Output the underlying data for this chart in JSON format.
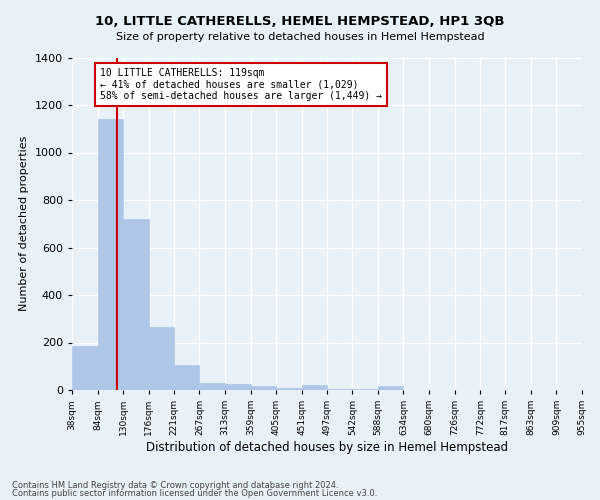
{
  "title": "10, LITTLE CATHERELLS, HEMEL HEMPSTEAD, HP1 3QB",
  "subtitle": "Size of property relative to detached houses in Hemel Hempstead",
  "xlabel": "Distribution of detached houses by size in Hemel Hempstead",
  "ylabel": "Number of detached properties",
  "footnote1": "Contains HM Land Registry data © Crown copyright and database right 2024.",
  "footnote2": "Contains public sector information licensed under the Open Government Licence v3.0.",
  "bar_edges": [
    38,
    84,
    130,
    176,
    221,
    267,
    313,
    359,
    405,
    451,
    497,
    542,
    588,
    634,
    680,
    726,
    772,
    817,
    863,
    909,
    955
  ],
  "bar_heights": [
    185,
    1140,
    720,
    265,
    105,
    30,
    25,
    15,
    8,
    20,
    6,
    6,
    15,
    2,
    2,
    2,
    2,
    2,
    2,
    2
  ],
  "bar_color": "#aec6e8",
  "bar_edge_color": "#aec6e8",
  "property_size": 119,
  "property_line_color": "#cc0000",
  "annotation_text": "10 LITTLE CATHERELLS: 119sqm\n← 41% of detached houses are smaller (1,029)\n58% of semi-detached houses are larger (1,449) →",
  "annotation_box_color": "#cc0000",
  "ylim": [
    0,
    1400
  ],
  "yticks": [
    0,
    200,
    400,
    600,
    800,
    1000,
    1200,
    1400
  ],
  "bg_color": "#e8f0f8",
  "plot_bg_color": "#e8f0f8",
  "grid_color": "#ffffff",
  "tick_labels": [
    "38sqm",
    "84sqm",
    "130sqm",
    "176sqm",
    "221sqm",
    "267sqm",
    "313sqm",
    "359sqm",
    "405sqm",
    "451sqm",
    "497sqm",
    "542sqm",
    "588sqm",
    "634sqm",
    "680sqm",
    "726sqm",
    "772sqm",
    "817sqm",
    "863sqm",
    "909sqm",
    "955sqm"
  ]
}
